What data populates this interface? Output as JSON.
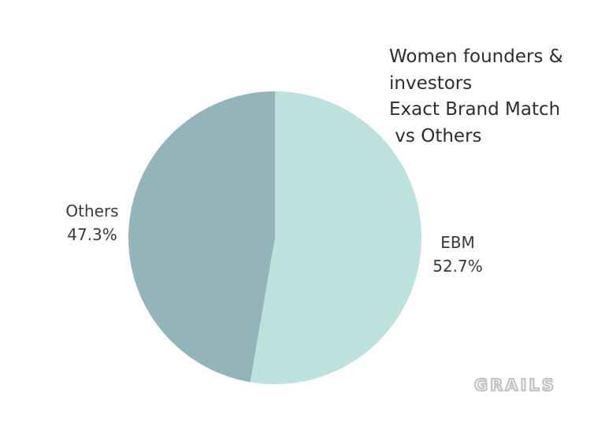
{
  "chart_data": {
    "type": "pie",
    "title_lines": [
      "Women founders &",
      "investors",
      "Exact Brand Match",
      " vs Others"
    ],
    "slices": [
      {
        "label": "EBM",
        "value": 52.7,
        "display": "52.7%",
        "color": "#bde2de"
      },
      {
        "label": "Others",
        "value": 47.3,
        "display": "47.3%",
        "color": "#93b4b8"
      }
    ],
    "start_angle_deg": 0,
    "direction": "clockwise",
    "legend": "none"
  },
  "watermark": {
    "text": "GRAILS",
    "color": "#c4c4c4"
  }
}
